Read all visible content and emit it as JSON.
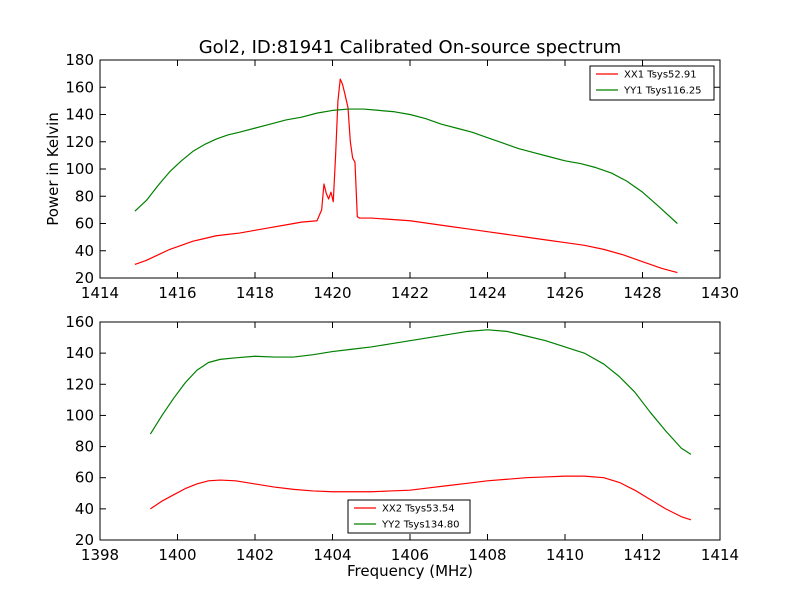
{
  "figure": {
    "background": "#ffffff"
  },
  "chart_data": [
    {
      "type": "line",
      "title": "Gol2, ID:81941 Calibrated On-source spectrum",
      "xlabel": "",
      "ylabel": "Power in Kelvin",
      "xlim": [
        1414,
        1430
      ],
      "ylim": [
        20,
        180
      ],
      "xticks": [
        1414,
        1416,
        1418,
        1420,
        1422,
        1424,
        1426,
        1428,
        1430
      ],
      "yticks": [
        20,
        40,
        60,
        80,
        100,
        120,
        140,
        160,
        180
      ],
      "grid": false,
      "legend_position": "top-right",
      "series": [
        {
          "name": "XX1 Tsys52.91",
          "color": "#ff0000",
          "x": [
            1414.9,
            1415.2,
            1415.5,
            1415.8,
            1416.1,
            1416.4,
            1416.7,
            1417.0,
            1417.3,
            1417.6,
            1418.0,
            1418.4,
            1418.8,
            1419.2,
            1419.6,
            1419.72,
            1419.78,
            1419.84,
            1419.9,
            1419.96,
            1420.02,
            1420.08,
            1420.14,
            1420.2,
            1420.26,
            1420.32,
            1420.4,
            1420.46,
            1420.52,
            1420.58,
            1420.64,
            1420.7,
            1421.0,
            1421.5,
            1422.0,
            1422.5,
            1423.0,
            1423.5,
            1424.0,
            1424.5,
            1425.0,
            1425.5,
            1426.0,
            1426.5,
            1427.0,
            1427.5,
            1428.0,
            1428.5,
            1428.9
          ],
          "y": [
            30,
            33,
            37,
            41,
            44,
            47,
            49,
            51,
            52,
            53,
            55,
            57,
            59,
            61,
            62,
            70,
            89,
            82,
            78,
            83,
            76,
            110,
            150,
            166,
            162,
            155,
            145,
            120,
            108,
            105,
            65,
            64,
            64,
            63,
            62,
            60,
            58,
            56,
            54,
            52,
            50,
            48,
            46,
            44,
            41,
            37,
            32,
            27,
            24
          ]
        },
        {
          "name": "YY1 Tsys116.25",
          "color": "#008000",
          "x": [
            1414.9,
            1415.2,
            1415.5,
            1415.8,
            1416.1,
            1416.4,
            1416.7,
            1417.0,
            1417.3,
            1417.6,
            1418.0,
            1418.4,
            1418.8,
            1419.2,
            1419.6,
            1420.0,
            1420.4,
            1420.8,
            1421.2,
            1421.6,
            1422.0,
            1422.4,
            1422.8,
            1423.2,
            1423.6,
            1424.0,
            1424.4,
            1424.8,
            1425.2,
            1425.6,
            1426.0,
            1426.4,
            1426.8,
            1427.2,
            1427.6,
            1428.0,
            1428.4,
            1428.9
          ],
          "y": [
            69,
            77,
            88,
            98,
            106,
            113,
            118,
            122,
            125,
            127,
            130,
            133,
            136,
            138,
            141,
            143,
            144,
            144,
            143,
            142,
            140,
            137,
            133,
            130,
            127,
            123,
            119,
            115,
            112,
            109,
            106,
            104,
            101,
            97,
            91,
            83,
            73,
            60
          ]
        }
      ]
    },
    {
      "type": "line",
      "title": "",
      "xlabel": "Frequency (MHz)",
      "ylabel": "",
      "xlim": [
        1398,
        1414
      ],
      "ylim": [
        20,
        160
      ],
      "xticks": [
        1398,
        1400,
        1402,
        1404,
        1406,
        1408,
        1410,
        1412,
        1414
      ],
      "yticks": [
        20,
        40,
        60,
        80,
        100,
        120,
        140,
        160
      ],
      "grid": false,
      "legend_position": "bottom-center",
      "series": [
        {
          "name": "XX2 Tsys53.54",
          "color": "#ff0000",
          "x": [
            1399.3,
            1399.6,
            1399.9,
            1400.2,
            1400.5,
            1400.8,
            1401.1,
            1401.5,
            1402.0,
            1402.5,
            1403.0,
            1403.5,
            1404.0,
            1404.5,
            1405.0,
            1405.5,
            1406.0,
            1406.5,
            1407.0,
            1407.5,
            1408.0,
            1408.5,
            1409.0,
            1409.5,
            1410.0,
            1410.5,
            1411.0,
            1411.4,
            1411.8,
            1412.2,
            1412.6,
            1413.0,
            1413.25
          ],
          "y": [
            40,
            45,
            49,
            53,
            56,
            58,
            58.5,
            58,
            56,
            54,
            52.5,
            51.5,
            51,
            51,
            51,
            51.5,
            52,
            53.5,
            55,
            56.5,
            58,
            59,
            60,
            60.5,
            61,
            61,
            60,
            57,
            52,
            46,
            40,
            35,
            33
          ]
        },
        {
          "name": "YY2 Tsys134.80",
          "color": "#008000",
          "x": [
            1399.3,
            1399.6,
            1399.9,
            1400.2,
            1400.5,
            1400.8,
            1401.1,
            1401.5,
            1402.0,
            1402.5,
            1403.0,
            1403.5,
            1404.0,
            1404.5,
            1405.0,
            1405.5,
            1406.0,
            1406.5,
            1407.0,
            1407.5,
            1408.0,
            1408.5,
            1409.0,
            1409.5,
            1410.0,
            1410.5,
            1411.0,
            1411.4,
            1411.8,
            1412.2,
            1412.6,
            1413.0,
            1413.25
          ],
          "y": [
            88,
            100,
            111,
            121,
            129,
            134,
            136,
            137,
            138,
            137.5,
            137.5,
            139,
            141,
            142.5,
            144,
            146,
            148,
            150,
            152,
            154,
            155,
            154,
            151,
            148,
            144,
            140,
            133,
            125,
            115,
            102,
            90,
            79,
            75
          ]
        }
      ]
    }
  ]
}
